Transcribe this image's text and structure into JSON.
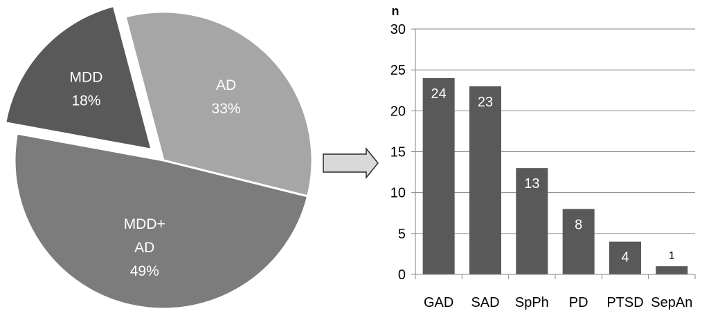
{
  "chart_data": [
    {
      "type": "pie",
      "slices": [
        {
          "label_lines": [
            "AD",
            "33%"
          ],
          "value": 33,
          "color": "#a6a6a6",
          "label_color": "#ffffff"
        },
        {
          "label_lines": [
            "MDD+",
            "AD",
            "49%"
          ],
          "value": 49,
          "color": "#7c7c7c",
          "label_color": "#ffffff"
        },
        {
          "label_lines": [
            "MDD",
            "18%"
          ],
          "value": 18,
          "color": "#595959",
          "label_color": "#ffffff",
          "exploded": true
        }
      ]
    },
    {
      "type": "bar",
      "ylabel": "n",
      "ylim": [
        0,
        30
      ],
      "yticks": [
        0,
        5,
        10,
        15,
        20,
        25,
        30
      ],
      "grid": true,
      "bar_color": "#595959",
      "categories": [
        "GAD",
        "SAD",
        "SpPh",
        "PD",
        "PTSD",
        "SepAn"
      ],
      "values": [
        24,
        23,
        13,
        8,
        4,
        1
      ],
      "data_labels": [
        "24",
        "23",
        "13",
        "8",
        "4",
        "1"
      ]
    }
  ]
}
